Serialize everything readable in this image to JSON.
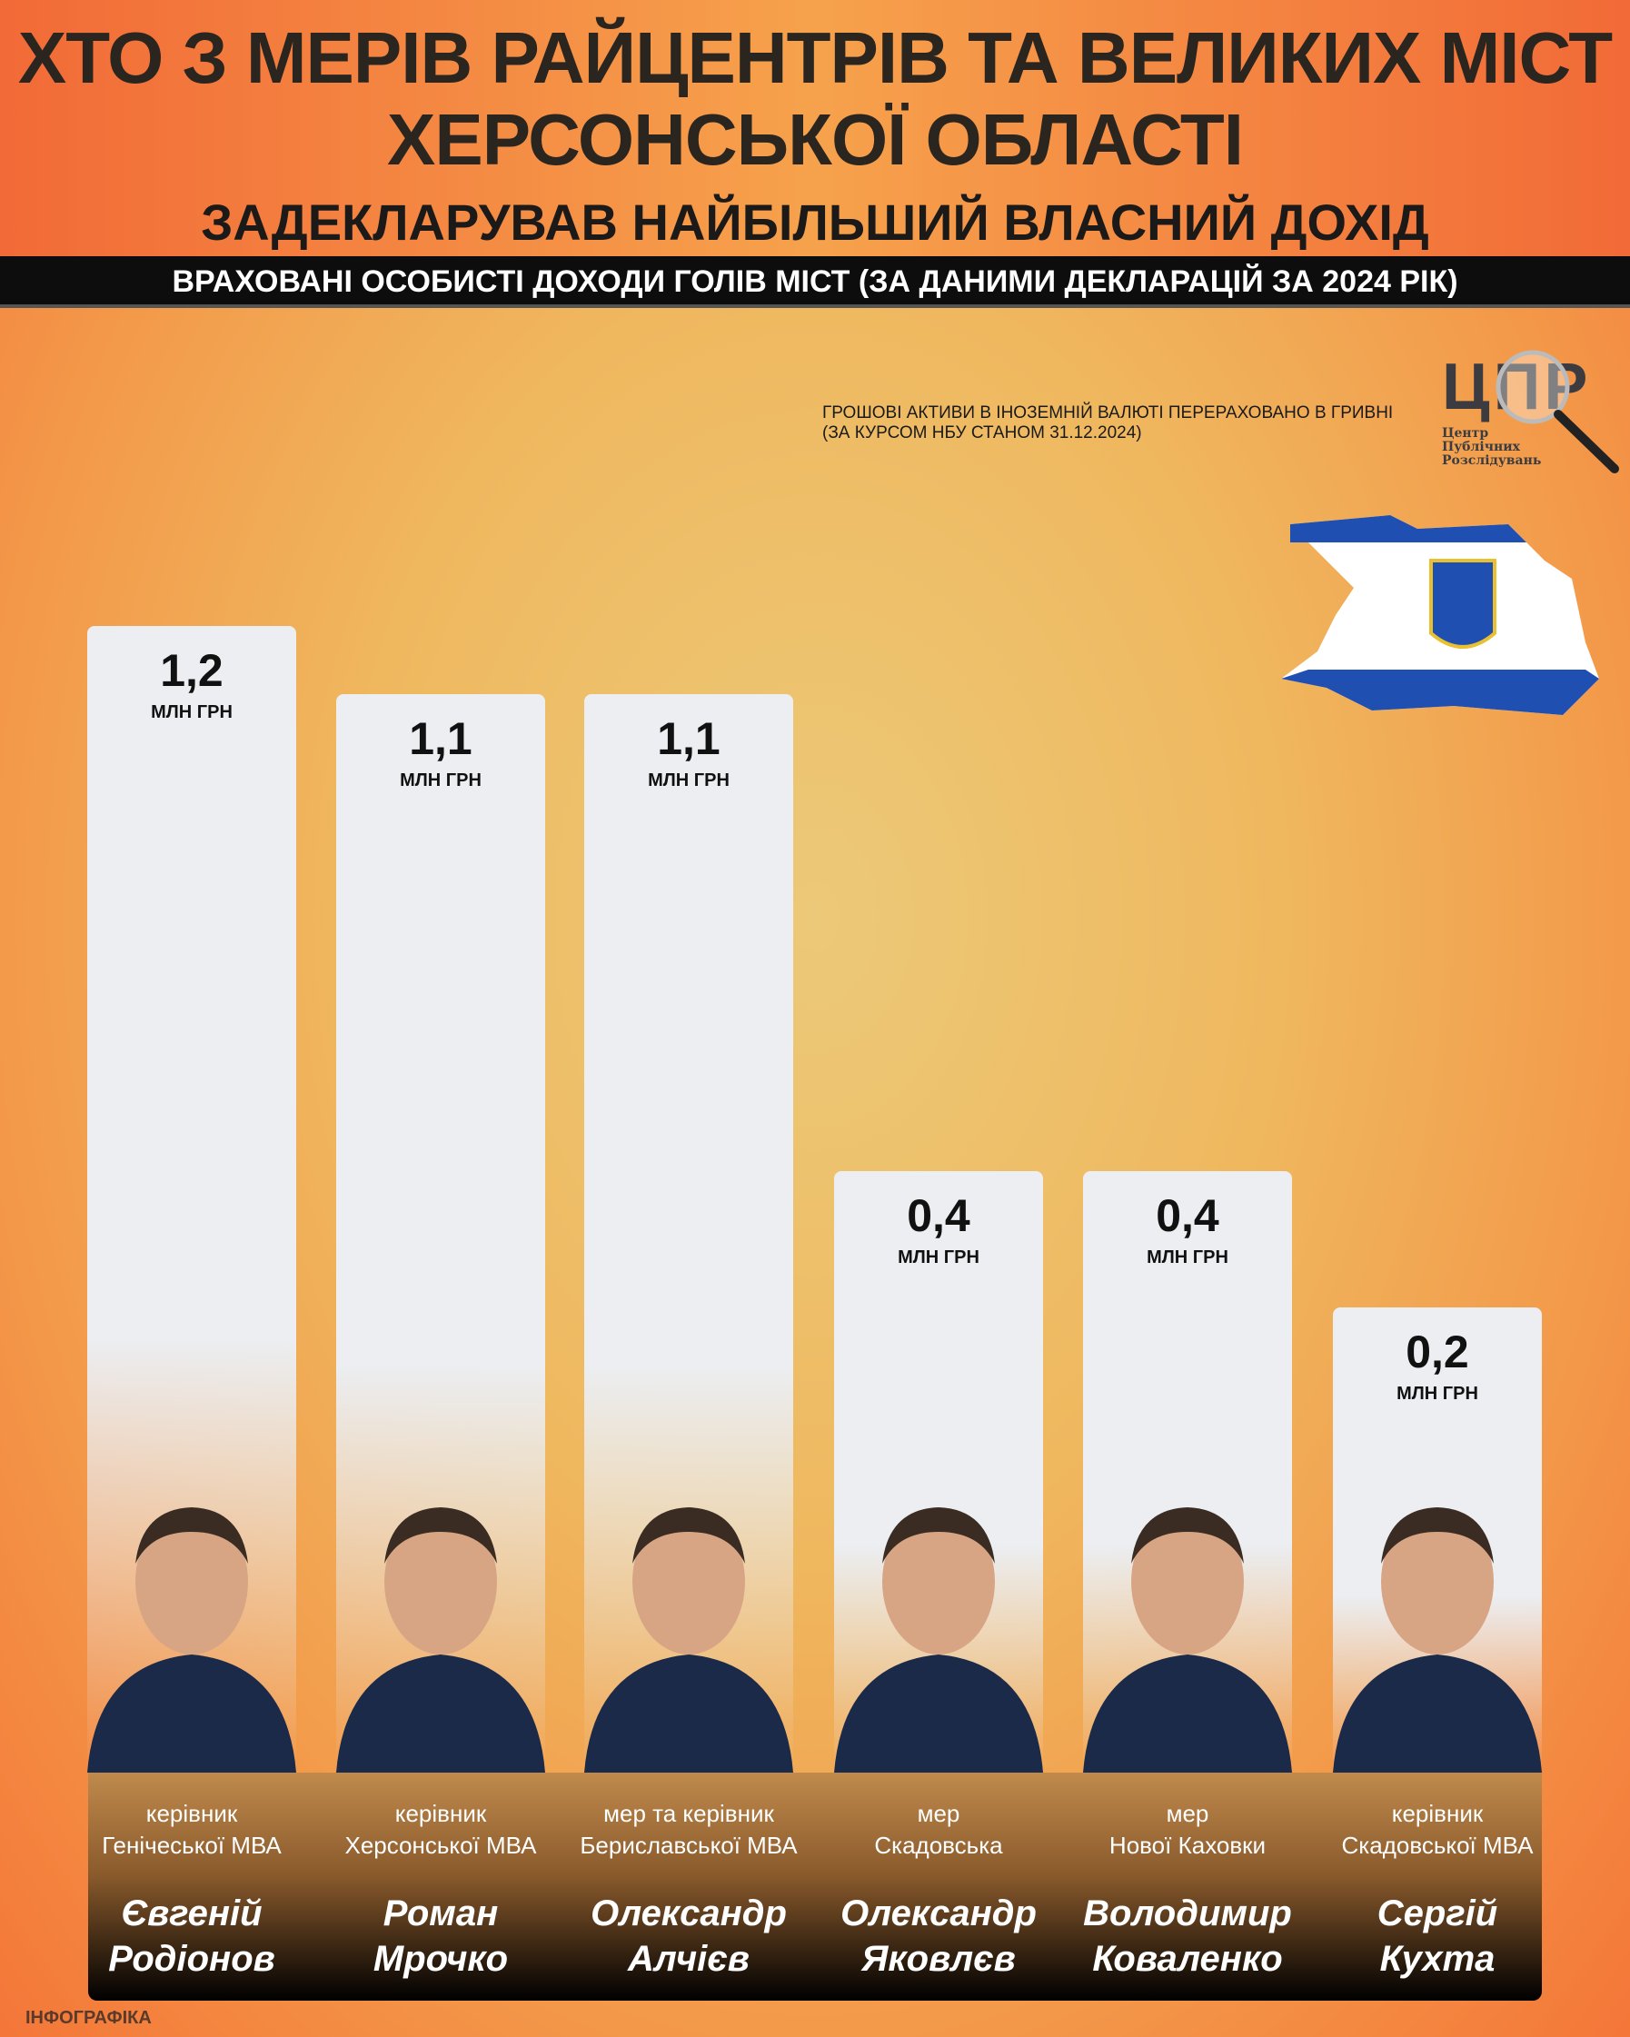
{
  "header": {
    "title_line1": "ХТО З МЕРІВ РАЙЦЕНТРІВ ТА ВЕЛИКИХ МІСТ",
    "title_line2": "ХЕРСОНСЬКОЇ ОБЛАСТІ",
    "subtitle": "ЗАДЕКЛАРУВАВ НАЙБІЛЬШИЙ ВЛАСНИЙ ДОХІД",
    "band": "ВРАХОВАНІ ОСОБИСТІ ДОХОДИ ГОЛІВ МІСТ (ЗА ДАНИМИ ДЕКЛАРАЦІЙ ЗА 2024 РІК)"
  },
  "note": {
    "line1": "ГРОШОВІ АКТИВИ В ІНОЗЕМНІЙ ВАЛЮТІ ПЕРЕРАХОВАНО В ГРИВНІ",
    "line2": "(ЗА КУРСОМ НБУ СТАНОМ 31.12.2024)"
  },
  "logo": {
    "letters": "ЦПР",
    "line1": "Центр",
    "line2": "Публічних",
    "line3": "Розслідувань"
  },
  "footer": "ІНФОГРАФІКА",
  "colors": {
    "bar": "#eceef2",
    "flag_blue": "#1f4fb0",
    "panel_dark": "#000000",
    "accent": "#f47638"
  },
  "chart_data": {
    "type": "bar",
    "unit": "МЛН ГРН",
    "categories": [
      "Євгеній Родіонов",
      "Роман Мрочко",
      "Олександр Алчієв",
      "Олександр Яковлєв",
      "Володимир Коваленко",
      "Сергій Кухта"
    ],
    "values": [
      1.2,
      1.1,
      1.1,
      0.4,
      0.4,
      0.2
    ],
    "labels": [
      "1,2",
      "1,1",
      "1,1",
      "0,4",
      "0,4",
      "0,2"
    ],
    "people": [
      {
        "role1": "керівник",
        "role2": "Генічеської МВА",
        "first": "Євгеній",
        "last": "Родіонов"
      },
      {
        "role1": "керівник",
        "role2": "Херсонської МВА",
        "first": "Роман",
        "last": "Мрочко"
      },
      {
        "role1": "мер та керівник",
        "role2": "Бериславської МВА",
        "first": "Олександр",
        "last": "Алчієв"
      },
      {
        "role1": "мер",
        "role2": "Скадовська",
        "first": "Олександр",
        "last": "Яковлєв"
      },
      {
        "role1": "мер",
        "role2": "Нової Каховки",
        "first": "Володимир",
        "last": "Коваленко"
      },
      {
        "role1": "керівник",
        "role2": "Скадовської МВА",
        "first": "Сергій",
        "last": "Кухта"
      }
    ]
  }
}
